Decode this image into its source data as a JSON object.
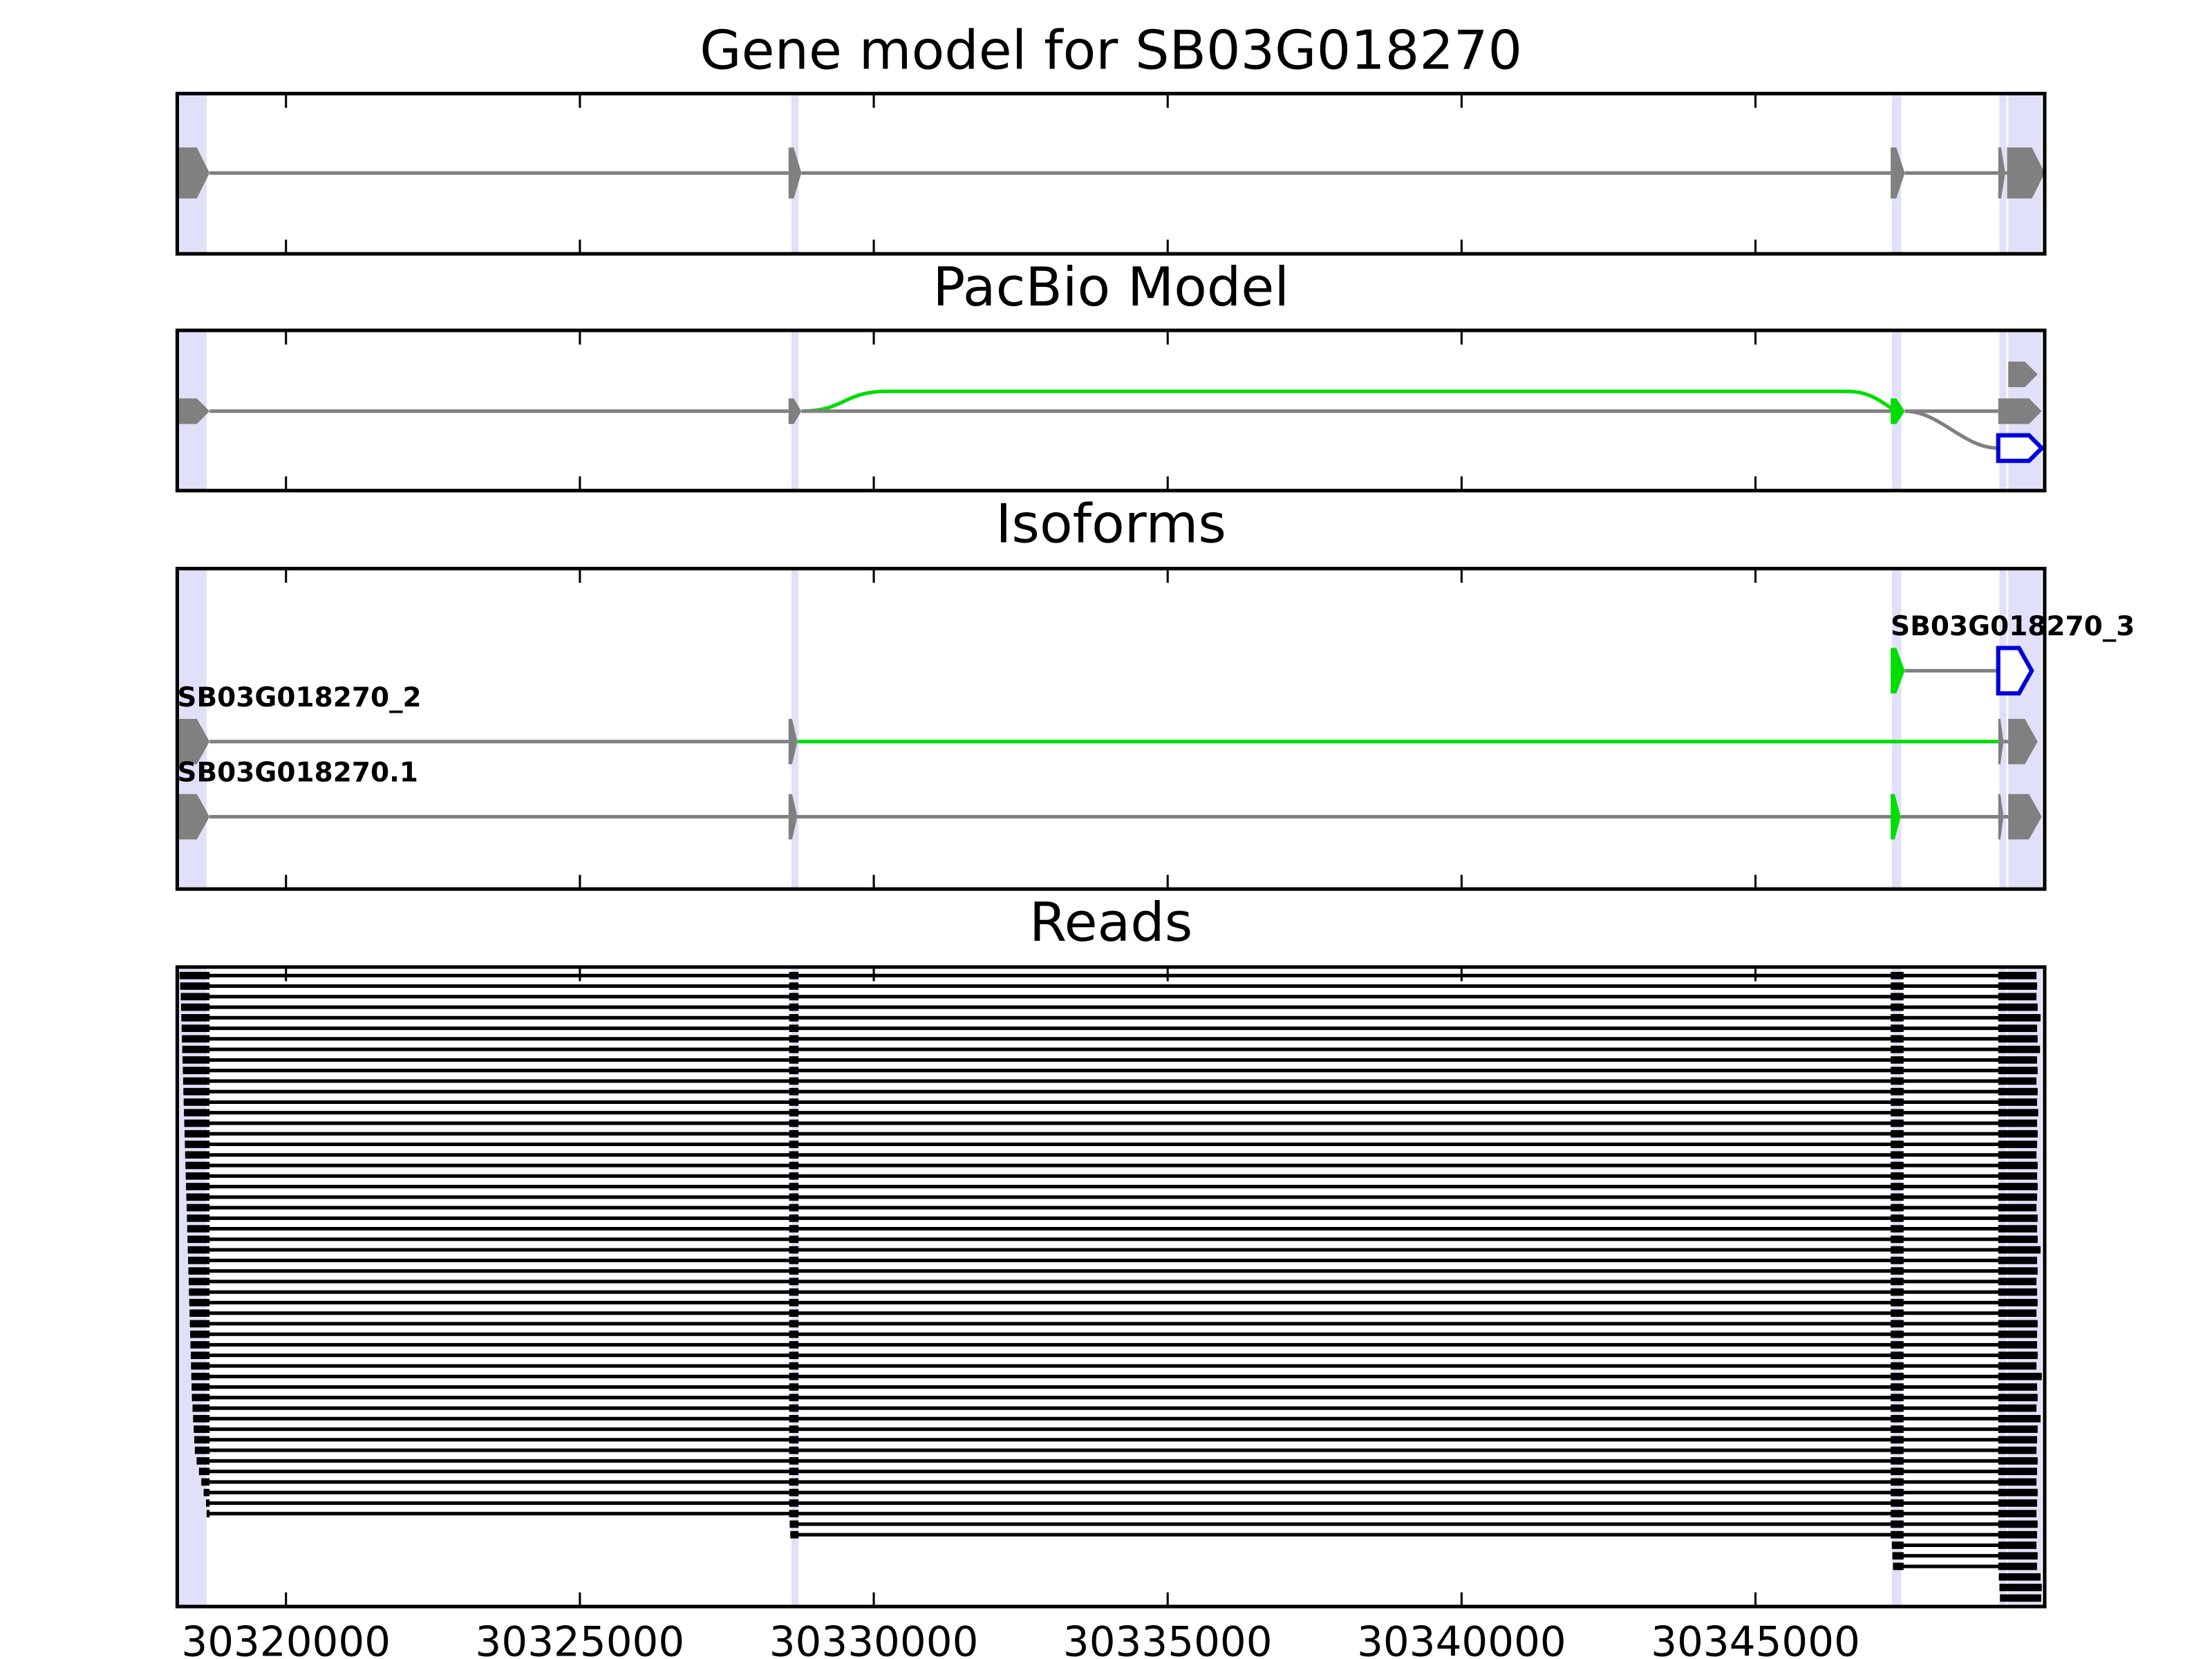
{
  "chart_data": [
    {
      "type": "gene-track",
      "title": "Gene model for SB03G018270",
      "xlim": [
        30318150,
        30349920
      ],
      "xticks": [
        30320000,
        30325000,
        30330000,
        30335000,
        30340000,
        30345000
      ],
      "highlights": [
        [
          30318180,
          30318650
        ],
        [
          30328600,
          30328720
        ],
        [
          30347320,
          30347480
        ],
        [
          30349150,
          30349270
        ],
        [
          30349300,
          30349870
        ]
      ],
      "highlight_color": "#e0e0f8",
      "tracks": [
        {
          "intron_colors": [
            "#808080",
            "#808080",
            "#808080",
            "#808080"
          ],
          "exons": [
            {
              "start": 30318150,
              "end": 30318700,
              "color": "#808080"
            },
            {
              "start": 30328550,
              "end": 30328770,
              "color": "#808080"
            },
            {
              "start": 30347300,
              "end": 30347540,
              "color": "#808080"
            },
            {
              "start": 30349130,
              "end": 30349250,
              "color": "#808080"
            },
            {
              "start": 30349280,
              "end": 30349920,
              "color": "#808080"
            }
          ]
        }
      ]
    },
    {
      "type": "splice-graph",
      "title": "PacBio Model",
      "xlim": [
        30318150,
        30349920
      ],
      "xticks": [
        30320000,
        30325000,
        30330000,
        30335000,
        30340000,
        30345000
      ],
      "highlights": [
        [
          30318180,
          30318650
        ],
        [
          30328600,
          30328720
        ],
        [
          30347320,
          30347480
        ],
        [
          30349150,
          30349270
        ],
        [
          30349300,
          30349870
        ]
      ],
      "highlight_color": "#e0e0f8",
      "tracks": [
        {
          "intron_colors": [],
          "exons": [
            {
              "start": 30349300,
              "end": 30349800,
              "color": "#808080"
            }
          ]
        },
        {
          "intron_colors": [
            "#808080",
            "#808080",
            "#808080"
          ],
          "exons": [
            {
              "start": 30318150,
              "end": 30318700,
              "color": "#808080"
            },
            {
              "start": 30328550,
              "end": 30328770,
              "color": "#808080"
            },
            {
              "start": 30347300,
              "end": 30347540,
              "color": "#00dd00"
            },
            {
              "start": 30349130,
              "end": 30349870,
              "color": "#808080"
            }
          ]
        },
        {
          "intron_colors": [],
          "exons": [
            {
              "start": 30349130,
              "end": 30349870,
              "color": "#0000dd",
              "outline": true
            }
          ]
        }
      ],
      "edge_colors": [
        "#00dd00",
        "#808080"
      ]
    },
    {
      "type": "isoforms",
      "title": "Isoforms",
      "xlim": [
        30318150,
        30349920
      ],
      "xticks": [
        30320000,
        30325000,
        30330000,
        30335000,
        30340000,
        30345000
      ],
      "highlights": [
        [
          30318180,
          30318650
        ],
        [
          30328600,
          30328720
        ],
        [
          30347320,
          30347480
        ],
        [
          30349150,
          30349270
        ],
        [
          30349300,
          30349870
        ]
      ],
      "highlight_color": "#e0e0f8",
      "tracks": [
        {
          "name": "SB03G018270_3",
          "intron_colors": [
            "#808080"
          ],
          "exons": [
            {
              "start": 30347300,
              "end": 30347540,
              "color": "#00dd00"
            },
            {
              "start": 30349130,
              "end": 30349700,
              "color": "#0000dd",
              "outline": true
            }
          ]
        },
        {
          "name": "SB03G018270_2",
          "intron_colors": [
            "#808080",
            "#00dd00",
            "#808080"
          ],
          "exons": [
            {
              "start": 30318150,
              "end": 30318700,
              "color": "#808080"
            },
            {
              "start": 30328550,
              "end": 30328700,
              "color": "#808080"
            },
            {
              "start": 30349130,
              "end": 30349220,
              "color": "#808080"
            },
            {
              "start": 30349300,
              "end": 30349800,
              "color": "#808080"
            }
          ]
        },
        {
          "name": "SB03G018270.1",
          "intron_colors": [
            "#808080",
            "#808080",
            "#808080",
            "#808080"
          ],
          "exons": [
            {
              "start": 30318150,
              "end": 30318700,
              "color": "#808080"
            },
            {
              "start": 30328550,
              "end": 30328700,
              "color": "#808080"
            },
            {
              "start": 30347300,
              "end": 30347470,
              "color": "#00dd00"
            },
            {
              "start": 30349130,
              "end": 30349220,
              "color": "#808080"
            },
            {
              "start": 30349300,
              "end": 30349870,
              "color": "#808080"
            }
          ]
        }
      ]
    },
    {
      "type": "reads",
      "title": "Reads",
      "xlim": [
        30318150,
        30349920
      ],
      "xticks": [
        30320000,
        30325000,
        30330000,
        30335000,
        30340000,
        30345000
      ],
      "highlights": [
        [
          30318180,
          30318650
        ],
        [
          30328600,
          30328720
        ],
        [
          30347320,
          30347480
        ],
        [
          30349150,
          30349270
        ],
        [
          30349300,
          30349870
        ]
      ],
      "highlight_color": "#e0e0f8",
      "color": "#000000",
      "read_exons": [
        [
          30318150,
          30318700
        ],
        [
          30328560,
          30328720
        ],
        [
          30347300,
          30347520
        ],
        [
          30349130,
          30349920
        ]
      ],
      "reads": [
        [
          30318190,
          30349780
        ],
        [
          30318200,
          30349790
        ],
        [
          30318210,
          30349780
        ],
        [
          30318215,
          30349800
        ],
        [
          30318220,
          30349850
        ],
        [
          30318225,
          30349790
        ],
        [
          30318230,
          30349800
        ],
        [
          30318235,
          30349840
        ],
        [
          30318240,
          30349790
        ],
        [
          30318245,
          30349800
        ],
        [
          30318250,
          30349780
        ],
        [
          30318255,
          30349800
        ],
        [
          30318260,
          30349790
        ],
        [
          30318265,
          30349810
        ],
        [
          30318270,
          30349790
        ],
        [
          30318275,
          30349800
        ],
        [
          30318280,
          30349790
        ],
        [
          30318285,
          30349780
        ],
        [
          30318290,
          30349800
        ],
        [
          30318295,
          30349790
        ],
        [
          30318300,
          30349800
        ],
        [
          30318305,
          30349790
        ],
        [
          30318310,
          30349780
        ],
        [
          30318315,
          30349800
        ],
        [
          30318320,
          30349790
        ],
        [
          30318325,
          30349800
        ],
        [
          30318330,
          30349850
        ],
        [
          30318335,
          30349790
        ],
        [
          30318340,
          30349800
        ],
        [
          30318345,
          30349780
        ],
        [
          30318350,
          30349790
        ],
        [
          30318355,
          30349800
        ],
        [
          30318360,
          30349780
        ],
        [
          30318365,
          30349800
        ],
        [
          30318370,
          30349790
        ],
        [
          30318375,
          30349790
        ],
        [
          30318380,
          30349800
        ],
        [
          30318385,
          30349780
        ],
        [
          30318390,
          30349870
        ],
        [
          30318395,
          30349790
        ],
        [
          30318400,
          30349800
        ],
        [
          30318410,
          30349780
        ],
        [
          30318420,
          30349850
        ],
        [
          30318430,
          30349800
        ],
        [
          30318440,
          30349790
        ],
        [
          30318450,
          30349780
        ],
        [
          30318480,
          30349800
        ],
        [
          30318520,
          30349790
        ],
        [
          30318560,
          30349780
        ],
        [
          30318600,
          30349800
        ],
        [
          30318640,
          30349790
        ],
        [
          30318650,
          30349780
        ],
        [
          30328570,
          30349800
        ],
        [
          30328580,
          30349790
        ],
        [
          30347320,
          30349780
        ],
        [
          30347330,
          30349800
        ],
        [
          30347340,
          30349790
        ],
        [
          30349140,
          30349850
        ],
        [
          30349150,
          30349870
        ],
        [
          30349160,
          30349860
        ]
      ]
    }
  ]
}
